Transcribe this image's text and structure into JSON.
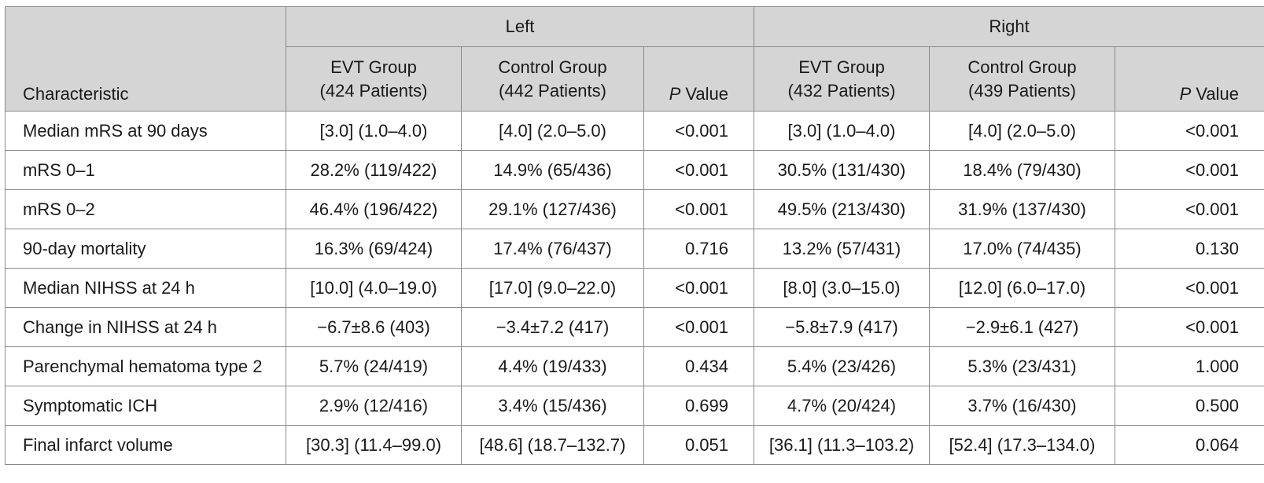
{
  "table": {
    "groups": {
      "left": "Left",
      "right": "Right"
    },
    "characteristic_header": "Characteristic",
    "subheaders": {
      "left": [
        {
          "line1": "EVT Group",
          "line2": "(424 Patients)"
        },
        {
          "line1": "Control Group",
          "line2": "(442 Patients)"
        }
      ],
      "right": [
        {
          "line1": "EVT Group",
          "line2": "(432 Patients)"
        },
        {
          "line1": "Control Group",
          "line2": "(439 Patients)"
        }
      ],
      "p_italic": "P",
      "p_text": " Value"
    },
    "rows": [
      {
        "label": "Median mRS at 90 days",
        "cells": [
          "[3.0] (1.0–4.0)",
          "[4.0] (2.0–5.0)",
          "<0.001",
          "[3.0] (1.0–4.0)",
          "[4.0] (2.0–5.0)",
          "<0.001"
        ]
      },
      {
        "label": "mRS 0–1",
        "cells": [
          "28.2% (119/422)",
          "14.9% (65/436)",
          "<0.001",
          "30.5% (131/430)",
          "18.4% (79/430)",
          "<0.001"
        ]
      },
      {
        "label": "mRS 0–2",
        "cells": [
          "46.4% (196/422)",
          "29.1% (127/436)",
          "<0.001",
          "49.5% (213/430)",
          "31.9% (137/430)",
          "<0.001"
        ]
      },
      {
        "label": "90-day mortality",
        "cells": [
          "16.3% (69/424)",
          "17.4% (76/437)",
          "0.716",
          "13.2% (57/431)",
          "17.0% (74/435)",
          "0.130"
        ]
      },
      {
        "label": "Median NIHSS at 24 h",
        "cells": [
          "[10.0] (4.0–19.0)",
          "[17.0] (9.0–22.0)",
          "<0.001",
          "[8.0] (3.0–15.0)",
          "[12.0] (6.0–17.0)",
          "<0.001"
        ]
      },
      {
        "label": "Change in NIHSS at 24 h",
        "cells": [
          "−6.7±8.6 (403)",
          "−3.4±7.2 (417)",
          "<0.001",
          "−5.8±7.9 (417)",
          "−2.9±6.1 (427)",
          "<0.001"
        ]
      },
      {
        "label": "Parenchymal hematoma type 2",
        "cells": [
          "5.7% (24/419)",
          "4.4% (19/433)",
          "0.434",
          "5.4% (23/426)",
          "5.3% (23/431)",
          "1.000"
        ]
      },
      {
        "label": "Symptomatic ICH",
        "cells": [
          "2.9% (12/416)",
          "3.4% (15/436)",
          "0.699",
          "4.7% (20/424)",
          "3.7% (16/430)",
          "0.500"
        ]
      },
      {
        "label": "Final infarct volume",
        "cells": [
          "[30.3] (11.4–99.0)",
          "[48.6] (18.7–132.7)",
          "0.051",
          "[36.1] (11.3–103.2)",
          "[52.4] (17.3–134.0)",
          "0.064"
        ]
      }
    ]
  }
}
